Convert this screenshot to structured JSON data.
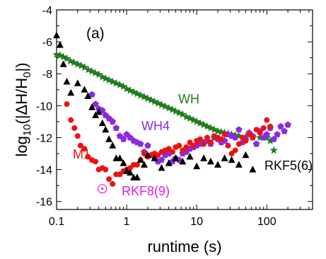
{
  "chart_data": {
    "type": "scatter",
    "xscale": "log",
    "xlim": [
      0.1,
      450
    ],
    "ylim": [
      -16.5,
      -4
    ],
    "xlabel": "runtime (s)",
    "ylabel": "log10(|ΔH/H0|)",
    "xticks": [
      {
        "value": 0.1,
        "label": "0.1"
      },
      {
        "value": 1,
        "label": "1"
      },
      {
        "value": 10,
        "label": "10"
      },
      {
        "value": 100,
        "label": "100"
      }
    ],
    "yticks": [
      {
        "value": -4,
        "label": "-4"
      },
      {
        "value": -6,
        "label": "-6"
      },
      {
        "value": -8,
        "label": "-8"
      },
      {
        "value": -10,
        "label": "-10"
      },
      {
        "value": -12,
        "label": "-12"
      },
      {
        "value": -14,
        "label": "-14"
      },
      {
        "value": -16,
        "label": "-16"
      }
    ],
    "panel_label": "(a)",
    "series": [
      {
        "name": "WH",
        "marker": "star",
        "color": "#1e7d1e",
        "x": [
          0.1,
          0.112,
          0.125,
          0.14,
          0.157,
          0.177,
          0.2,
          0.225,
          0.252,
          0.283,
          0.318,
          0.357,
          0.4,
          0.45,
          0.5,
          0.56,
          0.63,
          0.71,
          0.8,
          0.9,
          1.0,
          1.12,
          1.26,
          1.41,
          1.58,
          1.78,
          2.0,
          2.24,
          2.5,
          2.8,
          3.15,
          3.55,
          4.0,
          4.5,
          5.0,
          5.6,
          6.3,
          7.1,
          8.0,
          9.0,
          10.0,
          11.2,
          12.6,
          14.1,
          15.8,
          17.8,
          20.0,
          22.4,
          25.0,
          28.0,
          31.5,
          35.5,
          40.0,
          50.0,
          63.0,
          80.0,
          100.0,
          112.0,
          126.0
        ],
        "y": [
          -6.8,
          -6.85,
          -6.95,
          -7.05,
          -7.2,
          -7.3,
          -7.4,
          -7.5,
          -7.6,
          -7.75,
          -7.85,
          -7.95,
          -8.05,
          -8.2,
          -8.3,
          -8.4,
          -8.5,
          -8.6,
          -8.7,
          -8.8,
          -8.95,
          -9.05,
          -9.15,
          -9.25,
          -9.35,
          -9.45,
          -9.55,
          -9.65,
          -9.75,
          -9.85,
          -9.95,
          -10.05,
          -10.15,
          -10.25,
          -10.35,
          -10.45,
          -10.55,
          -10.7,
          -10.8,
          -10.9,
          -11.0,
          -11.1,
          -11.2,
          -11.3,
          -11.4,
          -11.5,
          -11.6,
          -11.65,
          -11.7,
          -11.75,
          -11.8,
          -11.85,
          -11.9,
          -11.95,
          -12.0,
          -12.0,
          -12.0,
          -12.2,
          -12.8
        ]
      },
      {
        "name": "WH4",
        "marker": "pentagon",
        "color": "#8a2be2",
        "x": [
          0.32,
          0.36,
          0.4,
          0.45,
          0.5,
          0.56,
          0.63,
          0.71,
          0.8,
          0.9,
          1.0,
          1.12,
          1.26,
          1.41,
          1.58,
          1.78,
          2.0,
          2.24,
          2.5,
          2.8,
          3.15,
          3.55,
          4.0,
          4.5,
          5.0,
          5.6,
          6.3,
          7.1,
          8.0,
          9.0,
          10.0,
          11.2,
          12.6,
          14.1,
          15.8,
          17.8,
          20.0,
          22.4,
          25.0,
          28.0,
          31.5,
          35.5,
          40.0,
          45.0,
          50.0,
          56.0,
          63.0,
          71.0,
          80.0,
          90.0,
          100.0,
          112.0,
          126.0,
          141.0,
          158.0,
          178.0,
          200.0
        ],
        "y": [
          -9.3,
          -9.9,
          -10.2,
          -10.3,
          -10.6,
          -10.8,
          -11.0,
          -11.4,
          -11.9,
          -12.1,
          -11.8,
          -12.0,
          -12.2,
          -12.3,
          -12.4,
          -12.9,
          -12.5,
          -13.1,
          -13.2,
          -13.5,
          -13.4,
          -13.1,
          -13.0,
          -13.5,
          -13.3,
          -13.4,
          -13.0,
          -12.9,
          -12.7,
          -12.6,
          -12.5,
          -12.4,
          -12.3,
          -12.2,
          -12.4,
          -12.0,
          -12.1,
          -12.3,
          -12.2,
          -11.8,
          -11.9,
          -12.0,
          -11.5,
          -12.3,
          -12.1,
          -11.7,
          -11.9,
          -12.4,
          -11.6,
          -12.0,
          -11.8,
          -11.4,
          -12.1,
          -11.8,
          -11.3,
          -11.6,
          -11.2
        ]
      },
      {
        "name": "M1",
        "marker": "circle",
        "color": "#ee1111",
        "x": [
          0.14,
          0.16,
          0.18,
          0.2,
          0.22,
          0.25,
          0.28,
          0.32,
          0.36,
          0.4,
          0.45,
          0.5,
          0.56,
          0.63,
          0.71,
          0.8,
          0.9,
          1.0,
          1.12,
          1.26,
          1.41,
          1.58,
          1.78,
          2.0,
          2.24,
          2.5,
          2.8,
          3.15,
          3.55,
          4.0,
          4.5,
          5.0,
          5.6,
          6.3,
          7.1,
          8.0,
          9.0,
          10.0,
          11.2,
          12.6,
          14.1,
          15.8,
          17.8,
          20.0,
          22.4,
          25.0,
          28.0,
          31.5,
          35.5,
          40.0,
          45.0,
          50.0,
          56.0,
          63.0,
          71.0,
          80.0,
          90.0,
          100.0,
          112.0
        ],
        "y": [
          -9.9,
          -10.9,
          -11.4,
          -11.9,
          -12.5,
          -12.7,
          -13.2,
          -13.4,
          -13.5,
          -14.0,
          -13.9,
          -14.0,
          -14.6,
          -14.9,
          -14.3,
          -14.3,
          -14.1,
          -14.0,
          -13.9,
          -13.7,
          -13.7,
          -13.4,
          -13.0,
          -13.2,
          -13.1,
          -13.0,
          -13.1,
          -12.9,
          -12.8,
          -12.7,
          -12.9,
          -12.6,
          -12.5,
          -12.8,
          -12.6,
          -12.3,
          -12.5,
          -12.2,
          -12.1,
          -12.4,
          -12.0,
          -12.3,
          -11.9,
          -12.0,
          -12.1,
          -11.8,
          -12.5,
          -13.0,
          -12.8,
          -12.4,
          -12.0,
          -12.2,
          -11.8,
          -12.0,
          -11.5,
          -11.7,
          -11.4,
          -10.9,
          -11.3
        ]
      },
      {
        "name": "RKF5(6)",
        "marker": "triangle",
        "color": "#000000",
        "x": [
          0.1,
          0.112,
          0.125,
          0.14,
          0.16,
          0.2,
          0.25,
          0.28,
          0.32,
          0.36,
          0.4,
          0.45,
          0.5,
          0.56,
          0.63,
          0.71,
          0.8,
          0.9,
          1.0,
          1.12,
          1.26,
          1.41,
          1.58,
          1.78,
          2.0,
          2.5,
          3.15,
          4.0,
          5.0,
          6.3,
          8.0,
          10.0,
          12.6,
          15.8,
          20.0,
          25.0,
          31.5,
          40.0,
          50.0,
          63.0
        ],
        "y": [
          -5.6,
          -6.2,
          -7.4,
          -8.5,
          -9.2,
          -8.6,
          -9.0,
          -9.4,
          -10.1,
          -10.6,
          -10.4,
          -11.1,
          -11.5,
          -12.1,
          -12.5,
          -13.3,
          -13.3,
          -13.6,
          -14.1,
          -14.2,
          -14.5,
          -14.5,
          -13.4,
          -13.7,
          -13.1,
          -13.3,
          -13.9,
          -13.6,
          -13.3,
          -13.5,
          -13.2,
          -13.8,
          -13.3,
          -13.5,
          -13.7,
          -13.3,
          -13.4,
          -13.7,
          -13.1,
          -14.0
        ]
      },
      {
        "name": "RKF8(9)",
        "marker": "circle-open",
        "color": "#e020e0",
        "x": [
          0.45
        ],
        "y": [
          -15.2
        ]
      }
    ],
    "annotations": [
      {
        "text": "WH",
        "series": "WH"
      },
      {
        "text": "WH4",
        "series": "WH4"
      },
      {
        "text": "M1",
        "series": "M1"
      },
      {
        "text": "RKF5(6)",
        "series": "RKF5(6)"
      },
      {
        "text": "RKF8(9)",
        "series": "RKF8(9)"
      }
    ]
  }
}
